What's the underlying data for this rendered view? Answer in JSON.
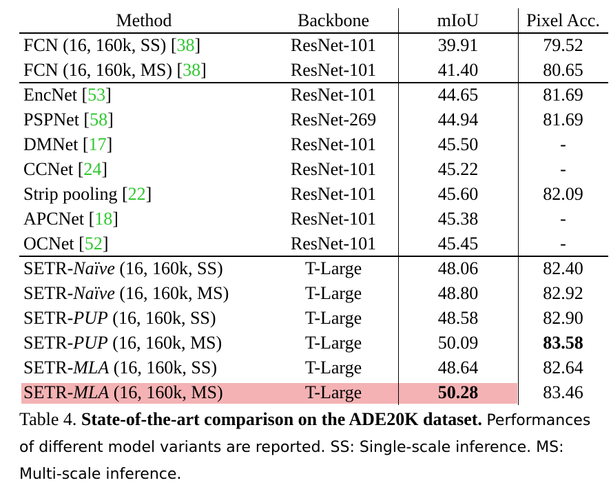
{
  "table": {
    "headers": [
      "Method",
      "Backbone",
      "mIoU",
      "Pixel Acc."
    ],
    "groups": [
      [
        {
          "m": [
            "FCN (16, 160k, SS) [",
            {
              "c": "38"
            },
            "]"
          ],
          "backbone": "ResNet-101",
          "miou": "39.91",
          "pix": "79.52"
        },
        {
          "m": [
            "FCN (16, 160k, MS) [",
            {
              "c": "38"
            },
            "]"
          ],
          "backbone": "ResNet-101",
          "miou": "41.40",
          "pix": "80.65"
        }
      ],
      [
        {
          "m": [
            "EncNet [",
            {
              "c": "53"
            },
            "]"
          ],
          "backbone": "ResNet-101",
          "miou": "44.65",
          "pix": "81.69"
        },
        {
          "m": [
            "PSPNet [",
            {
              "c": "58"
            },
            "]"
          ],
          "backbone": "ResNet-269",
          "miou": "44.94",
          "pix": "81.69"
        },
        {
          "m": [
            "DMNet [",
            {
              "c": "17"
            },
            "]"
          ],
          "backbone": "ResNet-101",
          "miou": "45.50",
          "pix": "-"
        },
        {
          "m": [
            "CCNet [",
            {
              "c": "24"
            },
            "]"
          ],
          "backbone": "ResNet-101",
          "miou": "45.22",
          "pix": "-"
        },
        {
          "m": [
            "Strip pooling [",
            {
              "c": "22"
            },
            "]"
          ],
          "backbone": "ResNet-101",
          "miou": "45.60",
          "pix": "82.09"
        },
        {
          "m": [
            "APCNet [",
            {
              "c": "18"
            },
            "]"
          ],
          "backbone": "ResNet-101",
          "miou": "45.38",
          "pix": "-"
        },
        {
          "m": [
            "OCNet [",
            {
              "c": "52"
            },
            "]"
          ],
          "backbone": "ResNet-101",
          "miou": "45.45",
          "pix": "-"
        }
      ],
      [
        {
          "m": [
            "SETR-",
            {
              "i": "Naïve"
            },
            " (16, 160k, SS)"
          ],
          "backbone": "T-Large",
          "miou": "48.06",
          "pix": "82.40"
        },
        {
          "m": [
            "SETR-",
            {
              "i": "Naïve"
            },
            " (16, 160k, MS)"
          ],
          "backbone": "T-Large",
          "miou": "48.80",
          "pix": "82.92"
        },
        {
          "m": [
            "SETR-",
            {
              "i": "PUP"
            },
            " (16, 160k, SS)"
          ],
          "backbone": "T-Large",
          "miou": "48.58",
          "pix": "82.90"
        },
        {
          "m": [
            "SETR-",
            {
              "i": "PUP"
            },
            " (16, 160k, MS)"
          ],
          "backbone": "T-Large",
          "miou": "50.09",
          "pix": "83.58",
          "pix_bold": true
        },
        {
          "m": [
            "SETR-",
            {
              "i": "MLA"
            },
            " (16, 160k, SS)"
          ],
          "backbone": "T-Large",
          "miou": "48.64",
          "pix": "82.64"
        },
        {
          "m": [
            "SETR-",
            {
              "i": "MLA"
            },
            " (16, 160k, MS)"
          ],
          "backbone": "T-Large",
          "miou": "50.28",
          "pix": "83.46",
          "miou_bold": true,
          "highlight": true
        }
      ]
    ],
    "cite_color": "#2fc72f",
    "highlight_color": "#f4b2b4"
  },
  "caption": {
    "label": "Table 4.",
    "title": "State-of-the-art comparison on the ADE20K dataset.",
    "body": "Performances of different model variants are reported. SS: Single-scale inference. MS: Multi-scale inference."
  }
}
